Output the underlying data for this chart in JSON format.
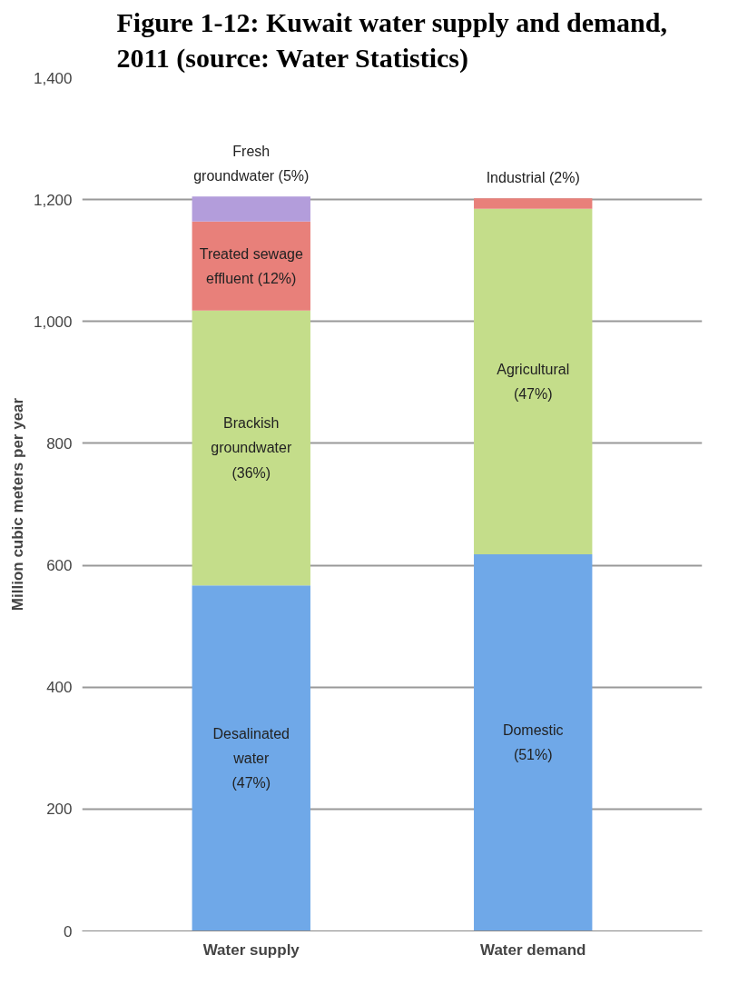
{
  "chart_data": {
    "type": "bar",
    "stacked": true,
    "title": "Figure 1-12: Kuwait water supply and demand,\n2011 (source: Water Statistics)",
    "ylabel": "Million cubic meters per year",
    "categories": [
      "Water supply",
      "Water demand"
    ],
    "series": [
      {
        "name": "Desalinated\nwater\n(47%)",
        "color": "#6fa8e8",
        "values": [
          567,
          null
        ]
      },
      {
        "name": "Brackish\ngroundwater\n(36%)",
        "color": "#c4dd8a",
        "values": [
          451,
          null
        ]
      },
      {
        "name": "Treated sewage\neffluent (12%)",
        "color": "#e8807a",
        "values": [
          146,
          null
        ]
      },
      {
        "name": "Fresh\ngroundwater (5%)",
        "color": "#b39ddb",
        "values": [
          41,
          null
        ]
      },
      {
        "name": "Domestic\n(51%)",
        "color": "#6fa8e8",
        "values": [
          null,
          618
        ]
      },
      {
        "name": "Agricultural\n(47%)",
        "color": "#c4dd8a",
        "values": [
          null,
          567
        ]
      },
      {
        "name": "Industrial (2%)",
        "color": "#e8807a",
        "values": [
          null,
          17
        ]
      }
    ],
    "ylim": [
      0,
      1400
    ],
    "yticks": [
      0,
      {
        "value": 200,
        "label": "200"
      },
      {
        "value": 400,
        "label": "400"
      },
      {
        "value": 600,
        "label": "600"
      },
      {
        "value": 800,
        "label": "800"
      },
      {
        "value": 1000,
        "label": "1,000"
      },
      {
        "value": 1200,
        "label": "1,200"
      },
      {
        "value": 1400,
        "label": "1,400"
      }
    ],
    "grid": "y"
  }
}
